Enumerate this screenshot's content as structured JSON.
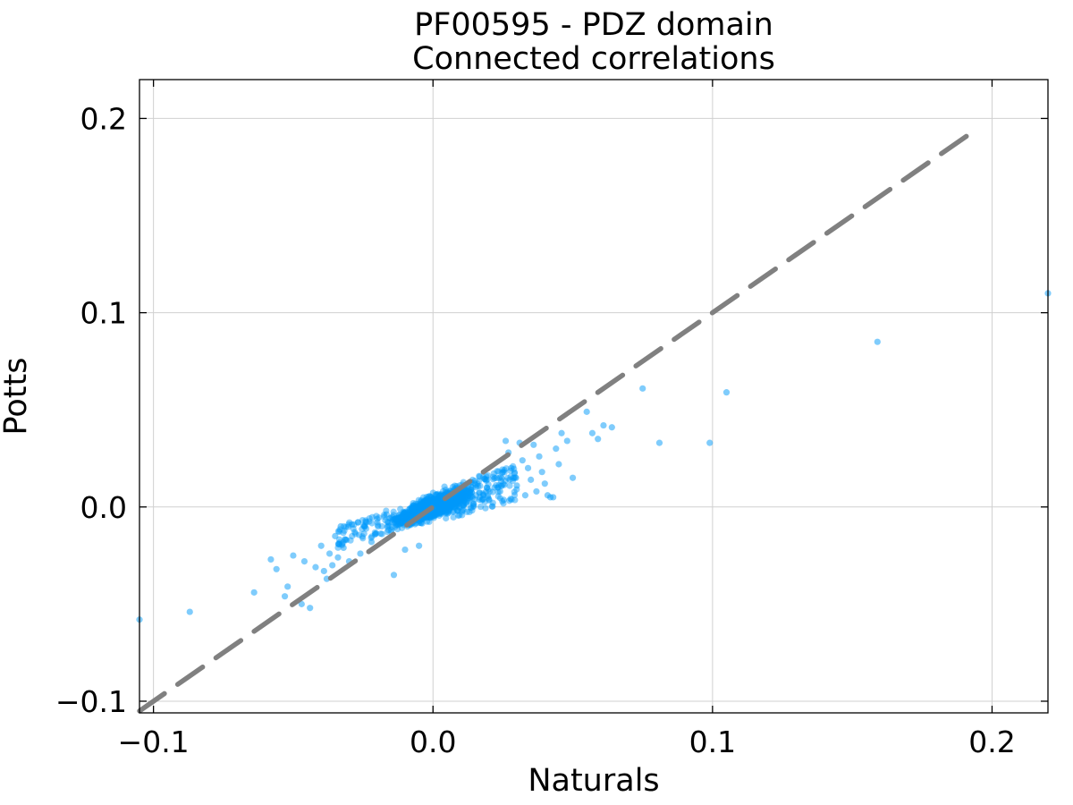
{
  "chart_data": {
    "type": "scatter",
    "title": "PF00595 - PDZ domain",
    "subtitle": "Connected correlations",
    "xlabel": "Naturals",
    "ylabel": "Potts",
    "xlim": [
      -0.105,
      0.22
    ],
    "ylim": [
      -0.106,
      0.22
    ],
    "xticks": [
      -0.1,
      0.0,
      0.1,
      0.2
    ],
    "xtick_labels": [
      "−0.1",
      "0.0",
      "0.1",
      "0.2"
    ],
    "yticks": [
      -0.1,
      0.0,
      0.1,
      0.2
    ],
    "ytick_labels": [
      "−0.1",
      "0.0",
      "0.1",
      "0.2"
    ],
    "grid": true,
    "legend": "none",
    "colors": {
      "points": "#009AFA",
      "reference_line": "#808080",
      "grid": "#d0d0d0",
      "frame": "#000000"
    },
    "reference_line": {
      "style": "dashed",
      "points": [
        [
          -0.105,
          -0.105
        ],
        [
          0.195,
          0.195
        ]
      ]
    },
    "series": [
      {
        "points": [
          [
            -0.105,
            -0.058
          ],
          [
            -0.087,
            -0.054
          ],
          [
            -0.064,
            -0.044
          ],
          [
            -0.058,
            -0.027
          ],
          [
            -0.056,
            -0.032
          ],
          [
            -0.053,
            -0.046
          ],
          [
            -0.052,
            -0.041
          ],
          [
            -0.05,
            -0.025
          ],
          [
            -0.047,
            -0.05
          ],
          [
            -0.046,
            -0.028
          ],
          [
            -0.044,
            -0.052
          ],
          [
            -0.042,
            -0.031
          ],
          [
            -0.04,
            -0.02
          ],
          [
            -0.039,
            -0.033
          ],
          [
            -0.038,
            -0.037
          ],
          [
            -0.037,
            -0.024
          ],
          [
            -0.036,
            -0.03
          ],
          [
            -0.035,
            -0.015
          ],
          [
            -0.034,
            -0.026
          ],
          [
            -0.033,
            -0.01
          ],
          [
            -0.032,
            -0.021
          ],
          [
            -0.031,
            -0.017
          ],
          [
            -0.03,
            -0.028
          ],
          [
            -0.029,
            -0.009
          ],
          [
            -0.028,
            -0.013
          ],
          [
            -0.026,
            -0.024
          ],
          [
            -0.022,
            -0.018
          ],
          [
            -0.014,
            -0.035
          ],
          [
            -0.01,
            -0.022
          ],
          [
            -0.005,
            -0.02
          ],
          [
            0.018,
            0.006
          ],
          [
            0.02,
            0.004
          ],
          [
            0.022,
            0.01
          ],
          [
            0.024,
            0.008
          ],
          [
            0.025,
            0.018
          ],
          [
            0.026,
            0.034
          ],
          [
            0.027,
            0.028
          ],
          [
            0.028,
            0.02
          ],
          [
            0.029,
            0.015
          ],
          [
            0.03,
            0.011
          ],
          [
            0.031,
            0.033
          ],
          [
            0.032,
            0.024
          ],
          [
            0.033,
            0.006
          ],
          [
            0.034,
            0.02
          ],
          [
            0.035,
            0.014
          ],
          [
            0.036,
            0.032
          ],
          [
            0.037,
            0.008
          ],
          [
            0.038,
            0.026
          ],
          [
            0.039,
            0.018
          ],
          [
            0.04,
            0.012
          ],
          [
            0.041,
            0.006
          ],
          [
            0.042,
            0.005
          ],
          [
            0.043,
            0.005
          ],
          [
            0.044,
            0.03
          ],
          [
            0.045,
            0.022
          ],
          [
            0.046,
            0.038
          ],
          [
            0.048,
            0.034
          ],
          [
            0.05,
            0.015
          ],
          [
            0.055,
            0.049
          ],
          [
            0.057,
            0.038
          ],
          [
            0.059,
            0.035
          ],
          [
            0.061,
            0.042
          ],
          [
            0.064,
            0.041
          ],
          [
            0.075,
            0.061
          ],
          [
            0.081,
            0.033
          ],
          [
            0.099,
            0.033
          ],
          [
            0.105,
            0.059
          ],
          [
            0.159,
            0.085
          ],
          [
            0.22,
            0.11
          ]
        ]
      }
    ]
  }
}
